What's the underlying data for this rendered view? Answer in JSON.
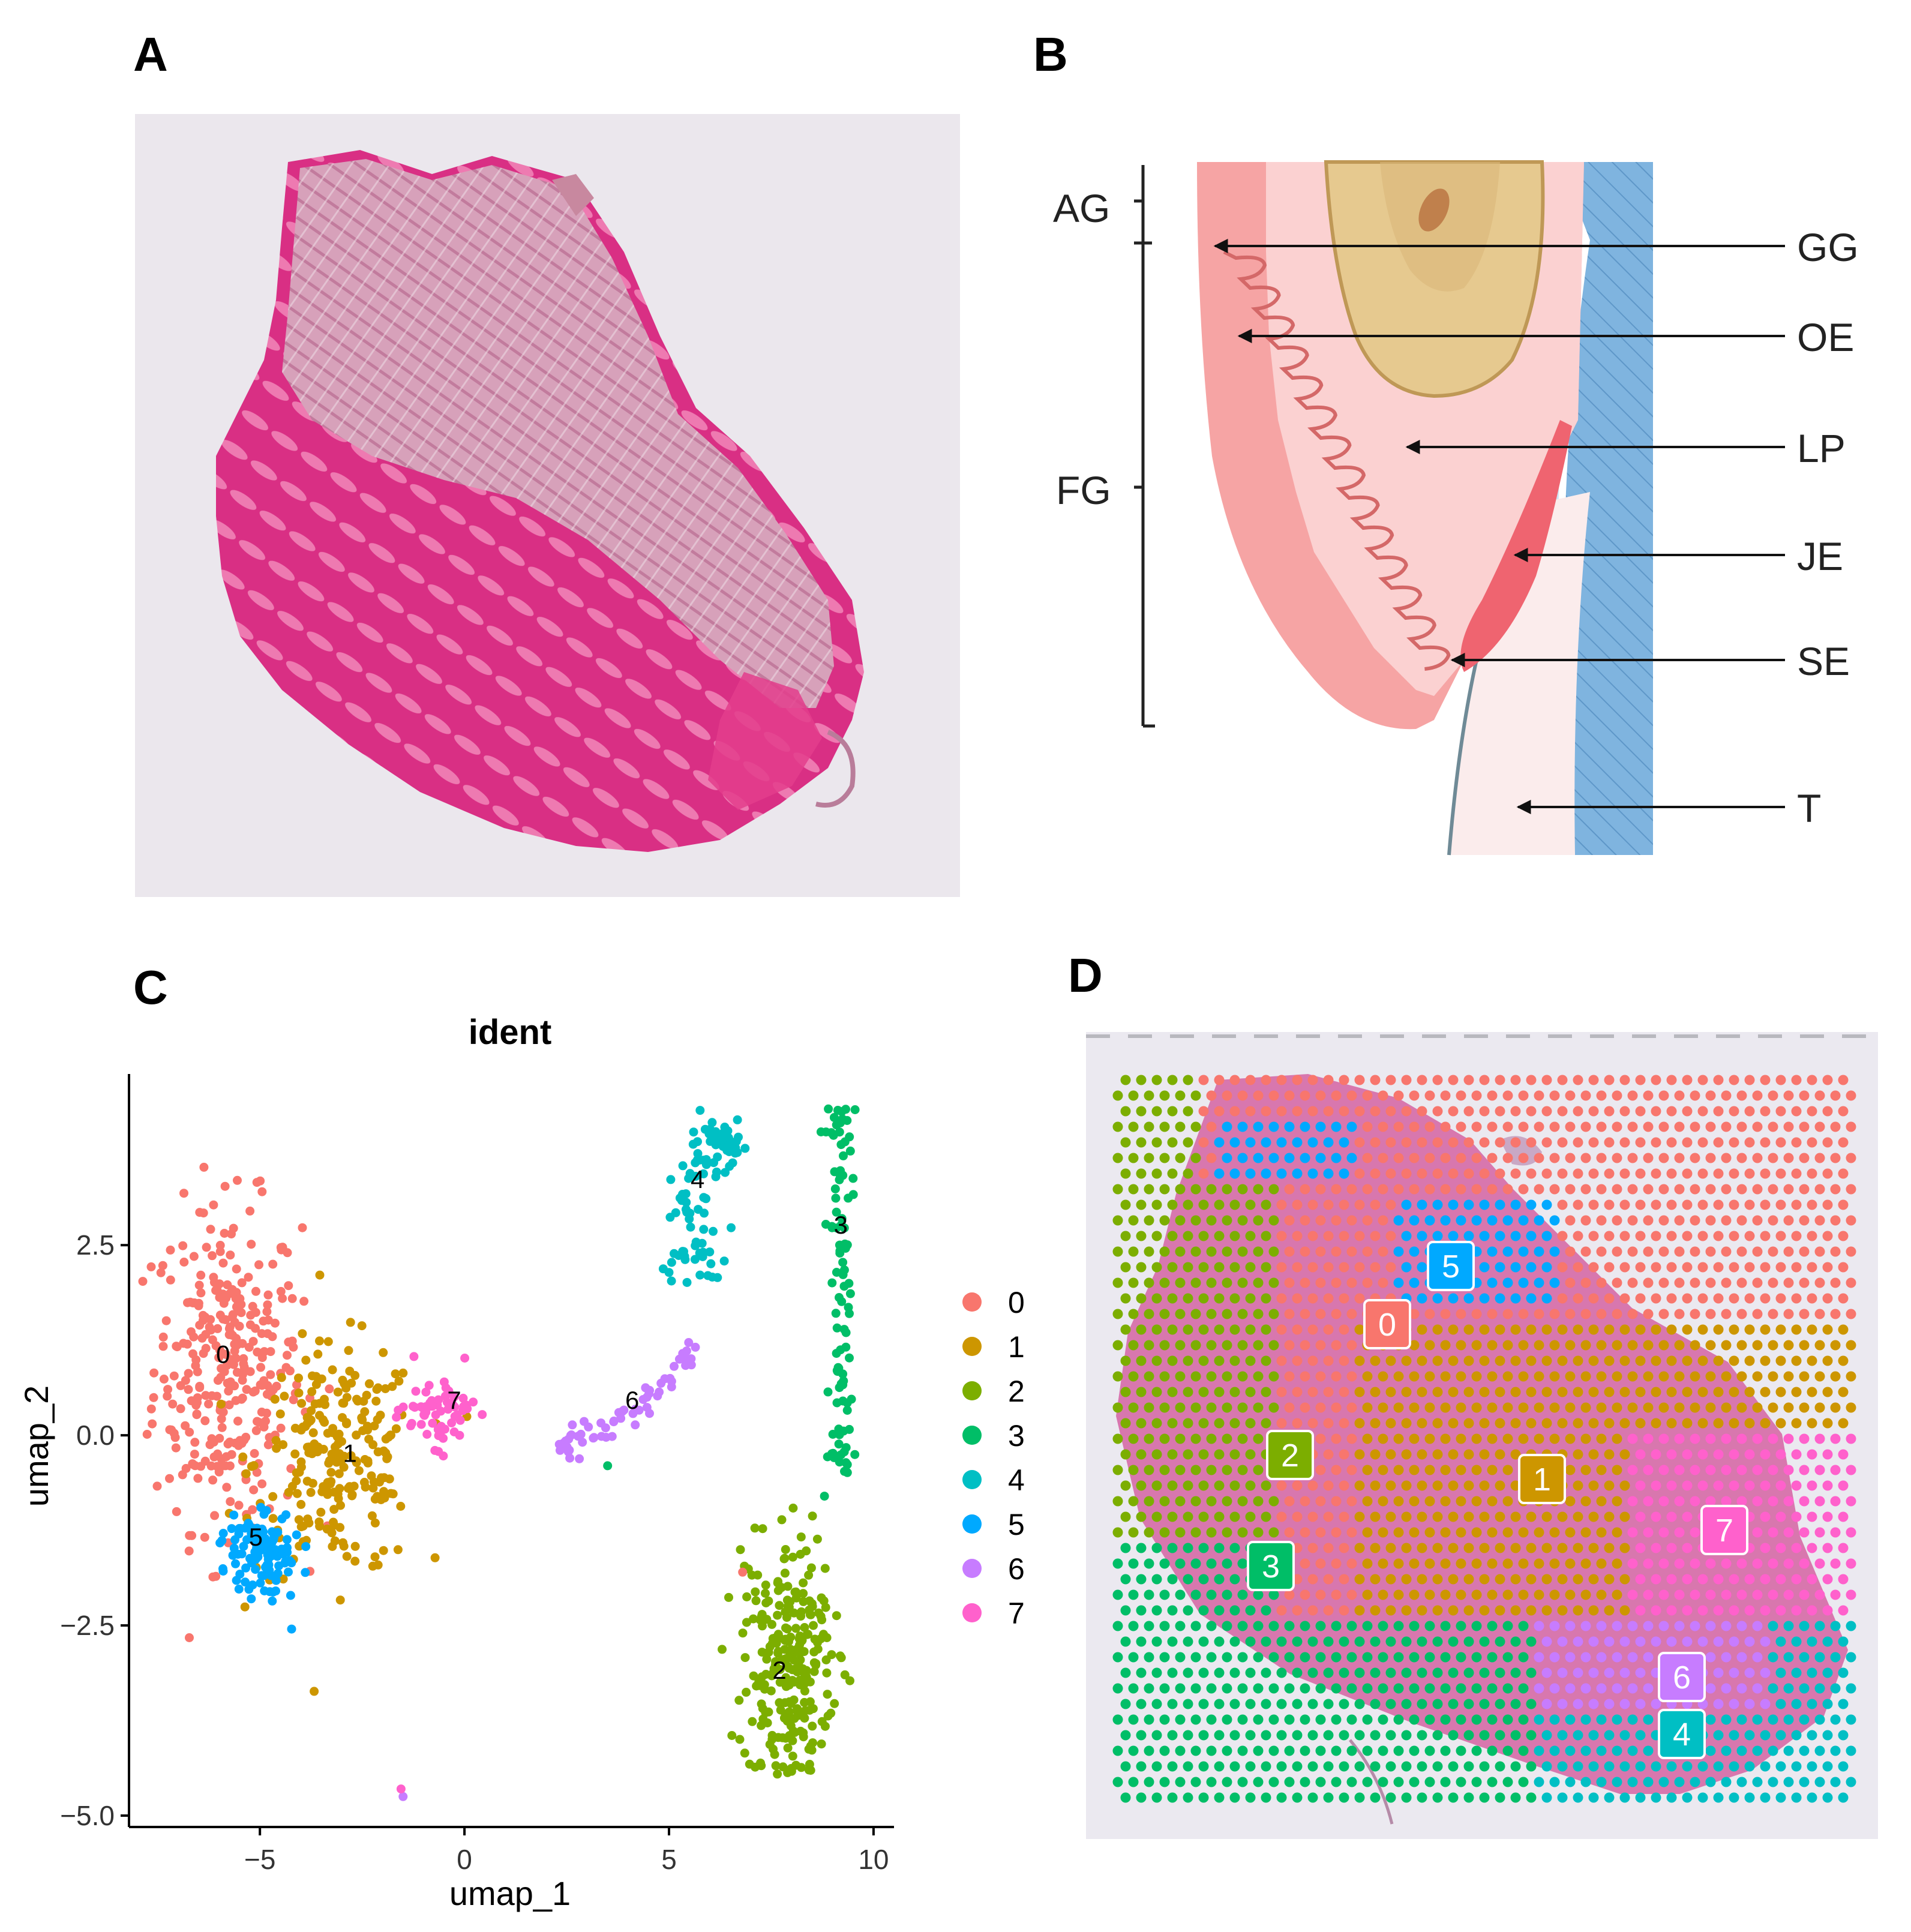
{
  "panels": {
    "a": {
      "letter": "A"
    },
    "b": {
      "letter": "B",
      "left_labels": [
        "AG",
        "FG"
      ],
      "right_labels": [
        "GG",
        "OE",
        "LP",
        "JE",
        "SE",
        "T"
      ]
    },
    "c": {
      "letter": "C"
    },
    "d": {
      "letter": "D",
      "cluster_tags": [
        "0",
        "1",
        "2",
        "3",
        "4",
        "5",
        "6",
        "7"
      ]
    }
  },
  "colors": {
    "cluster_0": "#F8766D",
    "cluster_1": "#CD9600",
    "cluster_2": "#7CAE00",
    "cluster_3": "#00BE67",
    "cluster_4": "#00BFC4",
    "cluster_5": "#00A9FF",
    "cluster_6": "#C77CFF",
    "cluster_7": "#FF61CC"
  },
  "chart_data": {
    "type": "scatter",
    "title": "ident",
    "xlabel": "umap_1",
    "ylabel": "umap_2",
    "xlim": [
      -8.2,
      10.5
    ],
    "ylim": [
      -5.15,
      4.75
    ],
    "xticks": [
      -5,
      0,
      5,
      10
    ],
    "xtick_labels": [
      "−5",
      "0",
      "5",
      "10"
    ],
    "yticks": [
      -5.0,
      -2.5,
      0.0,
      2.5
    ],
    "ytick_labels": [
      "−5.0",
      "−2.5",
      "0.0",
      "2.5"
    ],
    "legend_position": "right",
    "legend": [
      "0",
      "1",
      "2",
      "3",
      "4",
      "5",
      "6",
      "7"
    ],
    "cluster_labels": [
      {
        "label": "0",
        "x": -5.9,
        "y": 0.95
      },
      {
        "label": "1",
        "x": -2.8,
        "y": -0.35
      },
      {
        "label": "2",
        "x": 7.7,
        "y": -3.2
      },
      {
        "label": "3",
        "x": 9.2,
        "y": 2.65
      },
      {
        "label": "4",
        "x": 5.7,
        "y": 3.25
      },
      {
        "label": "5",
        "x": -5.1,
        "y": -1.45
      },
      {
        "label": "6",
        "x": 4.1,
        "y": 0.35
      },
      {
        "label": "7",
        "x": -0.25,
        "y": 0.35
      }
    ],
    "clusters": [
      {
        "name": "0",
        "approx_points": 320,
        "center_x": -5.8,
        "center_y": 0.9,
        "spread_x": 0.9,
        "spread_y": 1.05
      },
      {
        "name": "1",
        "approx_points": 230,
        "center_x": -3.1,
        "center_y": -0.35,
        "spread_x": 1.0,
        "spread_y": 0.75
      },
      {
        "name": "2",
        "approx_points": 260,
        "center_x": 7.9,
        "center_y": -2.95,
        "spread_x": 0.6,
        "spread_y": 0.85
      },
      {
        "name": "3",
        "approx_points": 100,
        "center_x": 9.2,
        "center_y": 1.0,
        "spread_x": 0.2,
        "spread_y": 1.6
      },
      {
        "name": "4",
        "approx_points": 100,
        "center_x": 5.8,
        "center_y": 3.0,
        "spread_x": 0.45,
        "spread_y": 0.6
      },
      {
        "name": "5",
        "approx_points": 110,
        "center_x": -5.0,
        "center_y": -1.55,
        "spread_x": 0.45,
        "spread_y": 0.3
      },
      {
        "name": "6",
        "approx_points": 60,
        "center_x": 4.2,
        "center_y": 0.3,
        "spread_x": 0.9,
        "spread_y": 0.4
      },
      {
        "name": "7",
        "approx_points": 60,
        "center_x": -0.4,
        "center_y": 0.3,
        "spread_x": 0.6,
        "spread_y": 0.25
      }
    ]
  }
}
